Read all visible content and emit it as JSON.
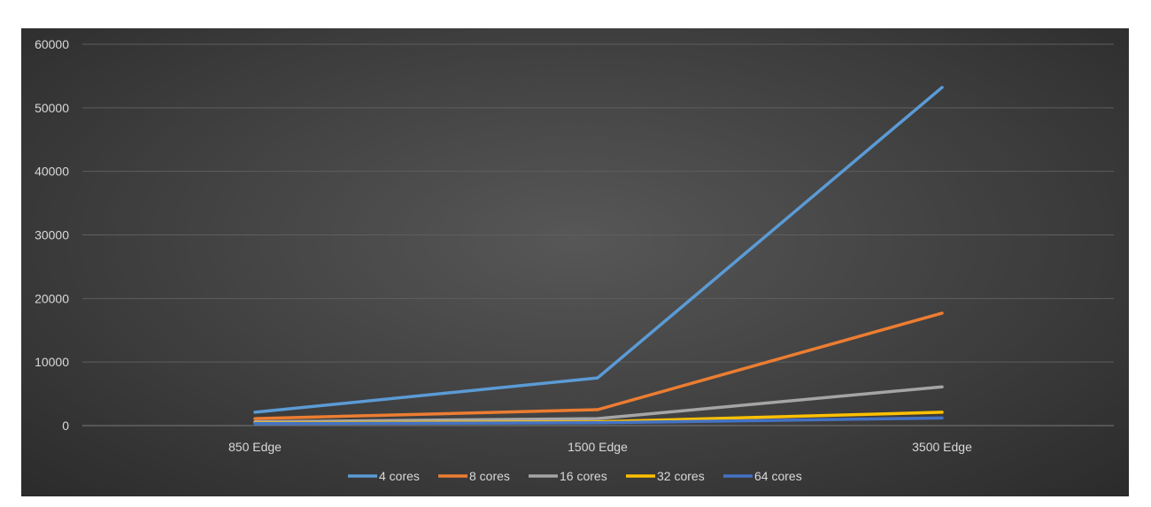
{
  "chart_data": {
    "type": "line",
    "title": "",
    "xlabel": "",
    "ylabel": "",
    "categories": [
      "850 Edge",
      "1500 Edge",
      "3500 Edge"
    ],
    "ylim": [
      0,
      60000
    ],
    "yticks": [
      0,
      10000,
      20000,
      30000,
      40000,
      50000,
      60000
    ],
    "grid": true,
    "legend_position": "bottom",
    "series": [
      {
        "name": "4 cores",
        "color": "#5b9bd5",
        "values": [
          2100,
          7500,
          53200
        ]
      },
      {
        "name": "8 cores",
        "color": "#ed7d31",
        "values": [
          1100,
          2500,
          17700
        ]
      },
      {
        "name": "16 cores",
        "color": "#a5a5a5",
        "values": [
          600,
          1100,
          6100
        ]
      },
      {
        "name": "32 cores",
        "color": "#ffc000",
        "values": [
          400,
          600,
          2100
        ]
      },
      {
        "name": "64 cores",
        "color": "#4472c4",
        "values": [
          300,
          450,
          1200
        ]
      }
    ]
  }
}
